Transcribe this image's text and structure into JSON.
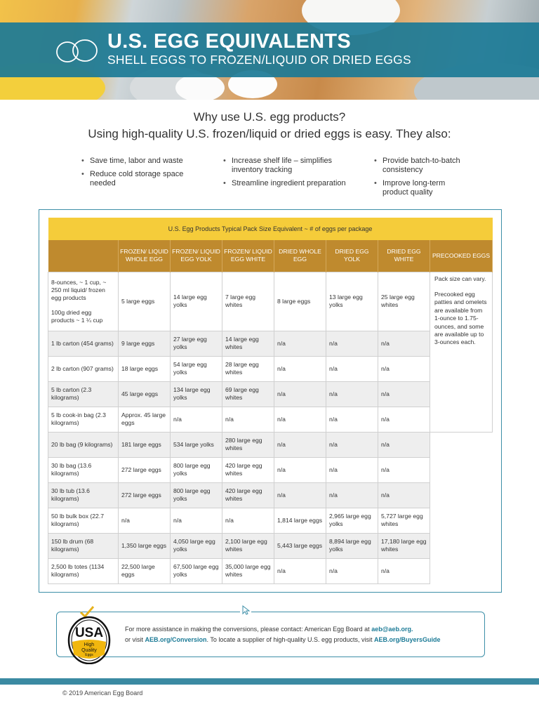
{
  "header": {
    "title": "U.S. EGG EQUIVALENTS",
    "subtitle": "SHELL EGGS TO FROZEN/LIQUID OR DRIED EGGS"
  },
  "intro": {
    "question": "Why use U.S. egg products?",
    "statement": "Using high-quality U.S. frozen/liquid or dried eggs is easy. They also:"
  },
  "benefits": {
    "col1": [
      "Save time, labor and waste",
      "Reduce cold storage space needed"
    ],
    "col2": [
      "Increase shelf life – simplifies inventory tracking",
      "Streamline ingredient preparation"
    ],
    "col3": [
      "Provide batch-to-batch consistency",
      "Improve long-term product quality"
    ]
  },
  "table": {
    "caption": "U.S. Egg Products Typical Pack Size Equivalent  ~  # of eggs per package",
    "headers": {
      "frozen_whole": "FROZEN/ LIQUID WHOLE EGG",
      "frozen_yolk": "FROZEN/ LIQUID EGG YOLK",
      "frozen_white": "FROZEN/ LIQUID EGG WHITE",
      "dried_whole": "DRIED WHOLE EGG",
      "dried_yolk": "DRIED EGG YOLK",
      "dried_white": "DRIED EGG WHITE",
      "precooked": "PRECOOKED EGGS"
    },
    "first_row_label_a": "8-ounces, ~ 1 cup, ~ 250 ml liquid/ frozen egg products",
    "first_row_label_b": "100g dried egg products ~ 1 ¼ cup",
    "precooked_note_a": "Pack size can vary.",
    "precooked_note_b": "Precooked egg patties and omelets are available from 1-ounce to 1.75-ounces, and some are available up to 3-ounces each.",
    "rows": [
      {
        "size": "",
        "fw": "5 large eggs",
        "fy": "14 large egg yolks",
        "fwh": "7 large egg whites",
        "dw": "8 large eggs",
        "dy": "13 large egg yolks",
        "dwh": "25 large egg whites"
      },
      {
        "size": "1 lb carton (454 grams)",
        "fw": "9 large eggs",
        "fy": "27 large egg yolks",
        "fwh": "14 large egg whites",
        "dw": "n/a",
        "dy": "n/a",
        "dwh": "n/a"
      },
      {
        "size": "2 lb carton (907 grams)",
        "fw": "18 large eggs",
        "fy": "54 large egg yolks",
        "fwh": "28 large egg whites",
        "dw": "n/a",
        "dy": "n/a",
        "dwh": "n/a"
      },
      {
        "size": "5 lb carton (2.3 kilograms)",
        "fw": "45 large eggs",
        "fy": "134 large egg yolks",
        "fwh": "69 large egg whites",
        "dw": "n/a",
        "dy": "n/a",
        "dwh": "n/a"
      },
      {
        "size": "5 lb cook-in bag (2.3 kilograms)",
        "fw": "Approx. 45 large eggs",
        "fy": "n/a",
        "fwh": "n/a",
        "dw": "n/a",
        "dy": "n/a",
        "dwh": "n/a"
      },
      {
        "size": "20 lb bag (9 kilograms)",
        "fw": "181 large eggs",
        "fy": "534 large yolks",
        "fwh": "280 large egg whites",
        "dw": "n/a",
        "dy": "n/a",
        "dwh": "n/a"
      },
      {
        "size": "30 lb bag (13.6 kilograms)",
        "fw": "272 large eggs",
        "fy": "800 large egg yolks",
        "fwh": "420 large egg whites",
        "dw": "n/a",
        "dy": "n/a",
        "dwh": "n/a"
      },
      {
        "size": "30 lb tub (13.6 kilograms)",
        "fw": "272 large eggs",
        "fy": "800 large egg yolks",
        "fwh": "420 large egg whites",
        "dw": "n/a",
        "dy": "n/a",
        "dwh": "n/a"
      },
      {
        "size": "50 lb bulk box (22.7 kilograms)",
        "fw": "n/a",
        "fy": "n/a",
        "fwh": "n/a",
        "dw": "1,814 large eggs",
        "dy": "2,965 large egg yolks",
        "dwh": "5,727 large egg whites"
      },
      {
        "size": "150 lb drum (68 kilograms)",
        "fw": "1,350 large eggs",
        "fy": "4,050 large egg yolks",
        "fwh": "2,100 large egg whites",
        "dw": "5,443 large eggs",
        "dy": "8,894 large egg yolks",
        "dwh": "17,180 large egg whites"
      },
      {
        "size": "2,500 lb totes (1134 kilograms)",
        "fw": "22,500 large eggs",
        "fy": "67,500 large egg yolks",
        "fwh": "35,000 large egg whites",
        "dw": "n/a",
        "dy": "n/a",
        "dwh": "n/a"
      }
    ]
  },
  "contact": {
    "line1_text": "For more assistance in making the conversions, please contact: American Egg Board at ",
    "email": "aeb@aeb.org.",
    "line2_prefix": "or visit ",
    "conversion_link": "AEB.org/Conversion",
    "line2_middle": ". To locate a supplier of high-quality U.S. egg products, visit ",
    "buyers_link": "AEB.org/BuyersGuide"
  },
  "logo": {
    "usa": "USA",
    "line1": "High",
    "line2": "Quality",
    "line3": "Eggs"
  },
  "footer": {
    "copyright": "© 2019 American Egg Board"
  },
  "colors": {
    "banner": "#1b7a96",
    "caption": "#f5cc3a",
    "header_row": "#bf8a2e",
    "accent_link": "#1b7a96"
  }
}
